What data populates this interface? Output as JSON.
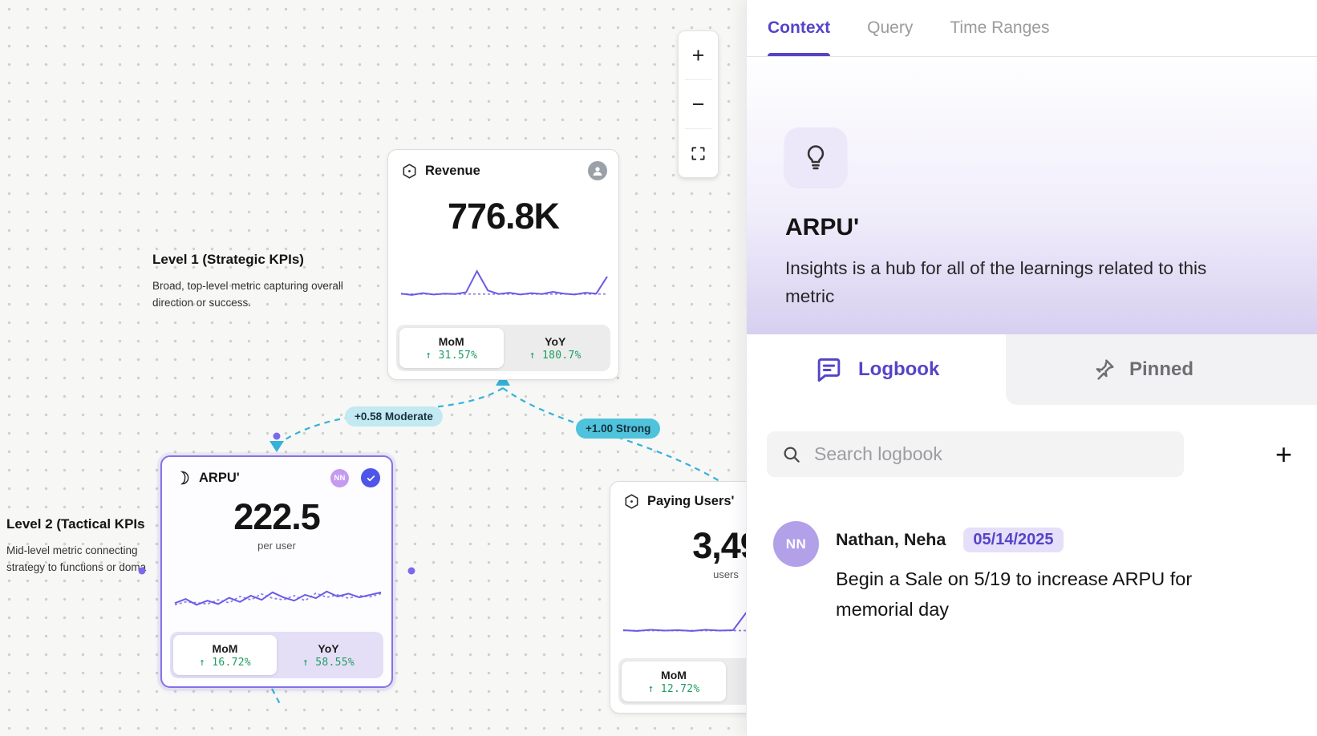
{
  "colors": {
    "accent_purple": "#5544c8",
    "chart_purple": "#6a5be6",
    "edge_teal": "#35b2d9",
    "positive_green": "#1f9d61"
  },
  "canvas": {
    "zoom_toolbar": {
      "zoom_in_label": "+",
      "zoom_out_label": "−"
    },
    "levels": [
      {
        "title": "Level 1 (Strategic KPIs)",
        "description": "Broad, top-level metric capturing overall direction or success."
      },
      {
        "title": "Level 2 (Tactical KPIs",
        "description": "Mid-level metric connecting strategy to functions or doma"
      }
    ],
    "edges": [
      {
        "label": "+0.58 Moderate",
        "strength": "moderate"
      },
      {
        "label": "+1.00 Strong",
        "strength": "strong"
      }
    ],
    "cards": {
      "revenue": {
        "title": "Revenue",
        "value": "776.8K",
        "tabs": {
          "mom_label": "MoM",
          "mom_value": "↑ 31.57%",
          "yoy_label": "YoY",
          "yoy_value": "↑ 180.7%"
        },
        "spark": [
          30,
          27,
          31,
          28,
          30,
          29,
          33,
          80,
          37,
          29,
          32,
          28,
          31,
          29,
          34,
          30,
          28,
          32,
          30,
          68
        ],
        "baseline": [
          29,
          29,
          29,
          29,
          29,
          29,
          29,
          29,
          29,
          29,
          29,
          29,
          29,
          29,
          29,
          29,
          29,
          29,
          29,
          29
        ]
      },
      "arpu": {
        "title": "ARPU'",
        "value": "222.5",
        "unit": "per user",
        "owner_initials": "NN",
        "tabs": {
          "mom_label": "MoM",
          "mom_value": "↑ 16.72%",
          "yoy_label": "YoY",
          "yoy_value": "↑ 58.55%"
        },
        "spark": [
          34,
          44,
          30,
          40,
          32,
          47,
          37,
          52,
          42,
          60,
          48,
          40,
          54,
          46,
          62,
          50,
          57,
          48,
          54,
          60
        ],
        "spark2": [
          30,
          37,
          35,
          32,
          42,
          35,
          50,
          42,
          56,
          46,
          42,
          52,
          40,
          58,
          48,
          54,
          46,
          52,
          49,
          57
        ]
      },
      "paying_users": {
        "title": "Paying Users'",
        "value": "3,49",
        "unit": "users",
        "tabs": {
          "mom_label": "MoM",
          "mom_value": "↑ 12.72%"
        },
        "spark": [
          30,
          28,
          31,
          29,
          30,
          28,
          31,
          29,
          30,
          76,
          34,
          29,
          31,
          28,
          30,
          40
        ],
        "baseline": [
          29,
          29,
          29,
          29,
          29,
          29,
          29,
          29,
          29,
          29,
          29,
          29,
          29,
          29,
          29,
          29
        ]
      }
    }
  },
  "panel": {
    "tabs": [
      {
        "label": "Context",
        "active": true
      },
      {
        "label": "Query",
        "active": false
      },
      {
        "label": "Time Ranges",
        "active": false
      }
    ],
    "metric": {
      "title": "ARPU'",
      "description": "Insights is a hub for all of the learnings related to this metric"
    },
    "subtabs": [
      {
        "label": "Logbook",
        "active": true
      },
      {
        "label": "Pinned",
        "active": false
      }
    ],
    "search": {
      "placeholder": "Search logbook"
    },
    "add_label": "+",
    "logbook": [
      {
        "avatar_initials": "NN",
        "author": "Nathan, Neha",
        "date": "05/14/2025",
        "text": "Begin a Sale on 5/19 to increase ARPU for memorial day"
      }
    ]
  }
}
